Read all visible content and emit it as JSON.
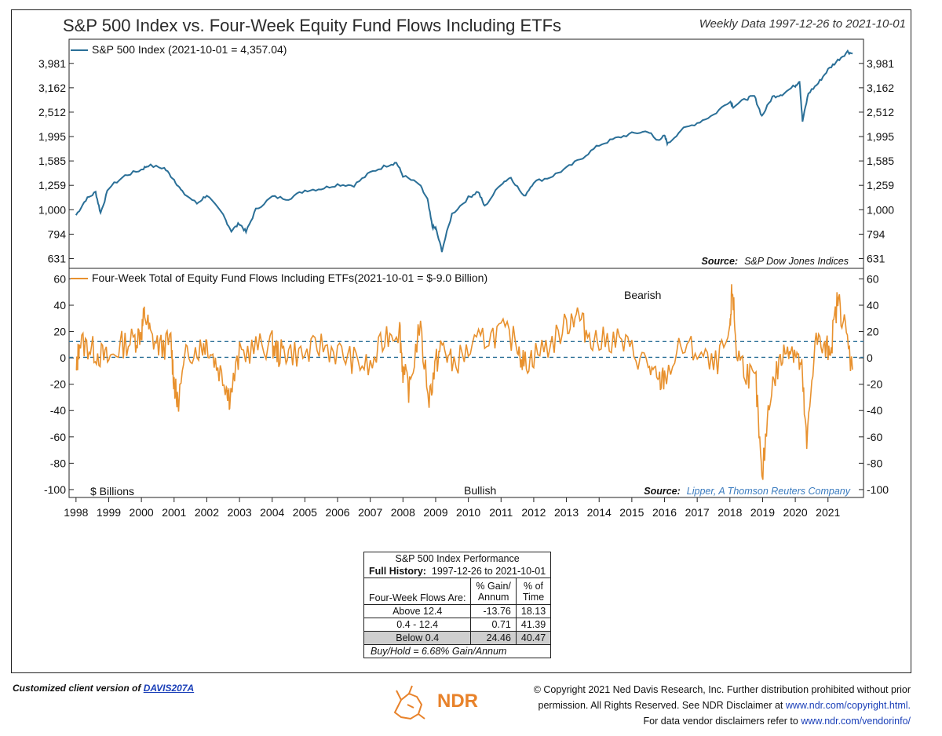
{
  "header": {
    "title": "S&P 500 Index vs. Four-Week Equity Fund Flows Including ETFs",
    "date_range": "Weekly Data 1997-12-26 to 2021-10-01"
  },
  "colors": {
    "sp500_line": "#2a6f97",
    "flows_line": "#e8912e",
    "threshold_dash": "#2a6f97",
    "link": "#1a3fb8",
    "source_link": "#3a7bbf"
  },
  "chart_data": [
    {
      "type": "line",
      "id": "sp500",
      "series_name": "S&P 500 Index (2021-10-01 = 4,357.04)",
      "scale": "log",
      "x_start": 1997.98,
      "x_end": 2021.75,
      "y_ticks": [
        "3,981",
        "3,162",
        "2,512",
        "1,995",
        "1,585",
        "1,259",
        "1,000",
        "794",
        "631"
      ],
      "y_tick_values": [
        3981,
        3162,
        2512,
        1995,
        1585,
        1259,
        1000,
        794,
        631
      ],
      "ylim": [
        575,
        5000
      ],
      "source_label": "Source:",
      "source_name": "S&P Dow Jones Indices",
      "x": [
        1998.0,
        1998.3,
        1998.6,
        1998.75,
        1999.0,
        1999.5,
        2000.0,
        2000.2,
        2000.7,
        2001.0,
        2001.25,
        2001.7,
        2002.0,
        2002.5,
        2002.75,
        2003.0,
        2003.2,
        2003.5,
        2004.0,
        2004.5,
        2005.0,
        2005.5,
        2006.0,
        2006.5,
        2007.0,
        2007.5,
        2007.8,
        2008.0,
        2008.5,
        2008.75,
        2008.9,
        2009.0,
        2009.19,
        2009.5,
        2010.0,
        2010.3,
        2010.5,
        2011.0,
        2011.3,
        2011.7,
        2012.0,
        2012.5,
        2013.0,
        2013.5,
        2014.0,
        2014.5,
        2015.0,
        2015.5,
        2015.75,
        2016.0,
        2016.1,
        2016.5,
        2017.0,
        2017.5,
        2018.0,
        2018.1,
        2018.5,
        2018.75,
        2018.98,
        2019.3,
        2019.6,
        2020.0,
        2020.13,
        2020.22,
        2020.4,
        2020.7,
        2021.0,
        2021.3,
        2021.6,
        2021.75
      ],
      "y": [
        950,
        1100,
        1180,
        970,
        1230,
        1380,
        1460,
        1520,
        1480,
        1330,
        1180,
        1060,
        1150,
        950,
        820,
        880,
        810,
        1000,
        1130,
        1110,
        1200,
        1220,
        1270,
        1260,
        1420,
        1520,
        1560,
        1380,
        1270,
        1100,
        850,
        840,
        680,
        960,
        1120,
        1190,
        1030,
        1280,
        1360,
        1130,
        1300,
        1360,
        1480,
        1640,
        1840,
        1960,
        2050,
        2100,
        1930,
        2000,
        1860,
        2120,
        2270,
        2450,
        2800,
        2650,
        2850,
        2920,
        2420,
        2900,
        2980,
        3230,
        3380,
        2300,
        3000,
        3300,
        3750,
        4100,
        4450,
        4357
      ]
    },
    {
      "type": "line",
      "id": "flows",
      "series_name": "Four-Week Total of Equity Fund Flows Including ETFs(2021-10-01 = $-9.0 Billion)",
      "unit_label": "$ Billions",
      "y_ticks": [
        60,
        40,
        20,
        0,
        -20,
        -40,
        -60,
        -80,
        -100
      ],
      "ylim": [
        -106,
        68
      ],
      "thresholds": [
        12.4,
        0.4
      ],
      "annotation_top": "Bearish",
      "annotation_bottom": "Bullish",
      "source_label": "Source:",
      "source_name": "Lipper, A Thomson Reuters Company",
      "x": [
        1998.0,
        1998.1,
        1998.4,
        1998.7,
        1999.0,
        1999.4,
        1999.8,
        2000.0,
        2000.1,
        2000.3,
        2000.6,
        2000.9,
        2001.0,
        2001.1,
        2001.4,
        2001.8,
        2002.0,
        2002.3,
        2002.6,
        2002.7,
        2003.0,
        2003.5,
        2004.0,
        2004.2,
        2004.5,
        2005.0,
        2005.5,
        2006.0,
        2006.5,
        2007.0,
        2007.5,
        2007.9,
        2008.0,
        2008.2,
        2008.5,
        2008.8,
        2009.0,
        2009.2,
        2009.5,
        2010.0,
        2010.5,
        2011.0,
        2011.5,
        2011.7,
        2012.0,
        2012.5,
        2013.0,
        2013.3,
        2013.6,
        2014.0,
        2014.5,
        2015.0,
        2015.5,
        2015.8,
        2016.0,
        2016.5,
        2017.0,
        2017.5,
        2018.0,
        2018.07,
        2018.2,
        2018.5,
        2018.8,
        2018.98,
        2019.2,
        2019.5,
        2019.8,
        2020.0,
        2020.2,
        2020.35,
        2020.6,
        2020.9,
        2021.1,
        2021.3,
        2021.5,
        2021.75
      ],
      "y": [
        -14,
        12,
        8,
        3,
        -2,
        10,
        14,
        20,
        34,
        15,
        8,
        12,
        -18,
        -35,
        5,
        8,
        12,
        -5,
        -20,
        -30,
        2,
        8,
        10,
        3,
        5,
        2,
        10,
        4,
        -2,
        -8,
        18,
        22,
        -10,
        -25,
        25,
        -30,
        -5,
        10,
        -5,
        5,
        15,
        20,
        12,
        -5,
        2,
        10,
        25,
        35,
        20,
        12,
        15,
        5,
        -5,
        -20,
        -15,
        8,
        5,
        -8,
        15,
        55,
        5,
        -10,
        -20,
        -95,
        -30,
        -5,
        10,
        5,
        -10,
        -68,
        15,
        5,
        10,
        45,
        25,
        -9
      ]
    },
    {
      "type": "table",
      "id": "performance",
      "title": "S&P 500 Index Performance",
      "history_label": "Full History:",
      "history_range": "1997-12-26 to 2021-10-01",
      "row_header": "Four-Week Flows Are:",
      "col_gain_line1": "% Gain/",
      "col_gain_line2": "Annum",
      "col_time_line1": "% of",
      "col_time_line2": "Time",
      "rows": [
        {
          "label": "Above 12.4",
          "gain": "-13.76",
          "time": "18.13"
        },
        {
          "label": "0.4 - 12.4",
          "gain": "0.71",
          "time": "41.39"
        },
        {
          "label": "Below 0.4",
          "gain": "24.46",
          "time": "40.47"
        }
      ],
      "buy_hold": "Buy/Hold = 6.68% Gain/Annum"
    }
  ],
  "x_axis": {
    "labels": [
      "1998",
      "1999",
      "2000",
      "2001",
      "2002",
      "2003",
      "2004",
      "2005",
      "2006",
      "2007",
      "2008",
      "2009",
      "2010",
      "2011",
      "2012",
      "2013",
      "2014",
      "2015",
      "2016",
      "2017",
      "2018",
      "2019",
      "2020",
      "2021"
    ]
  },
  "footer": {
    "client_text": "Customized client version of",
    "client_link": "DAVIS207A",
    "logo_text": "NDR",
    "copyright_line1": "© Copyright 2021 Ned Davis Research, Inc. Further distribution prohibited without prior",
    "copyright_line2_pre": "permission. All Rights Reserved. See NDR Disclaimer at",
    "copyright_link1": "www.ndr.com/copyright.html.",
    "copyright_line3_pre": "For data vendor disclaimers refer to",
    "copyright_link2": "www.ndr.com/vendorinfo/"
  }
}
